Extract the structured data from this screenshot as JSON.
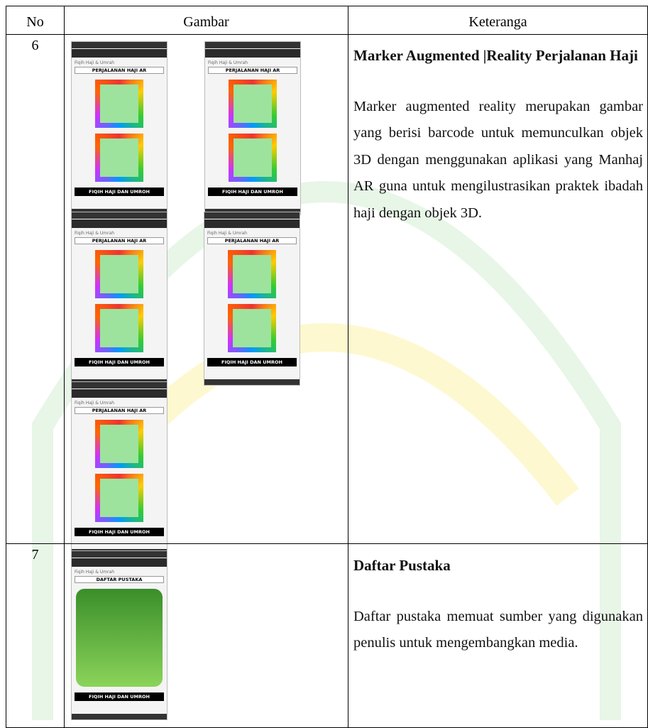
{
  "table": {
    "header": [
      "No",
      "Gambar",
      "Keteranga"
    ],
    "rows": [
      {
        "no": "6",
        "screenshots": [
          {
            "app": "Fiqih Haji & Umrah",
            "heading": "PERJALANAN HAJI AR",
            "footer": "FIQIH HAJI DAN UMROH"
          },
          {
            "app": "Fiqih Haji & Umrah",
            "heading": "PERJALANAN HAJI AR",
            "footer": "FIQIH HAJI DAN UMROH"
          },
          {
            "app": "Fiqih Haji & Umrah",
            "heading": "PERJALANAN HAJI AR",
            "footer": "FIQIH HAJI DAN UMROH"
          },
          {
            "app": "Fiqih Haji & Umrah",
            "heading": "PERJALANAN HAJI AR",
            "footer": "FIQIH HAJI DAN UMROH"
          },
          {
            "app": "Fiqih Haji & Umrah",
            "heading": "PERJALANAN HAJI AR",
            "footer": "FIQIH HAJI DAN UMROH"
          }
        ],
        "title": "Marker Augmented |Reality Perjalanan Haji",
        "text": "Marker augmented reality merupakan gambar yang berisi barcode untuk memunculkan objek 3D dengan menggunakan aplikasi yang Manhaj AR guna untuk mengilustrasikan praktek ibadah haji dengan objek 3D."
      },
      {
        "no": "7",
        "screenshots": [
          {
            "app": "Fiqih Haji & Umrah",
            "heading": "DAFTAR PUSTAKA",
            "footer": "FIQIH HAJI DAN UMROH"
          }
        ],
        "title": "Daftar Pustaka",
        "text": "Daftar pustaka memuat sumber yang digunakan penulis untuk mengembangkan media."
      }
    ]
  }
}
